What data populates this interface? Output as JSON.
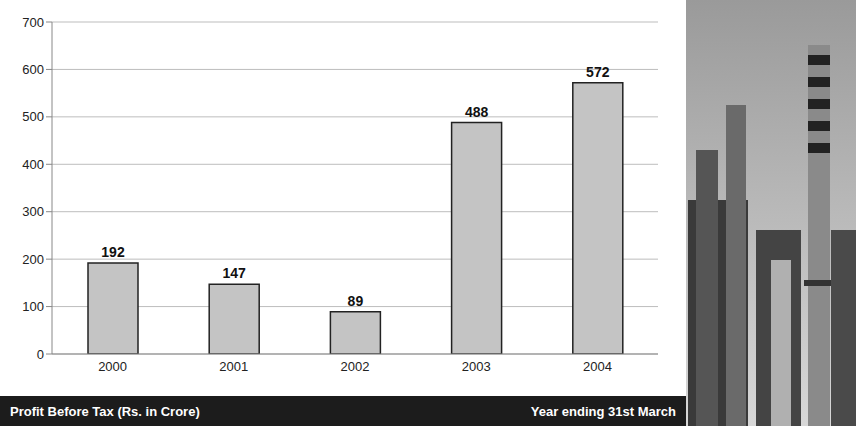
{
  "chart_data": {
    "type": "bar",
    "title": "Profit Before Tax (Rs. in Crore)",
    "subtitle": "Year ending 31st March",
    "categories": [
      "2000",
      "2001",
      "2002",
      "2003",
      "2004"
    ],
    "values": [
      192,
      147,
      89,
      488,
      572
    ],
    "color": "#c4c4c4",
    "ylim": [
      0,
      700
    ],
    "yticks": [
      0,
      100,
      200,
      300,
      400,
      500,
      600,
      700
    ],
    "grid": true,
    "data_labels": true
  }
}
